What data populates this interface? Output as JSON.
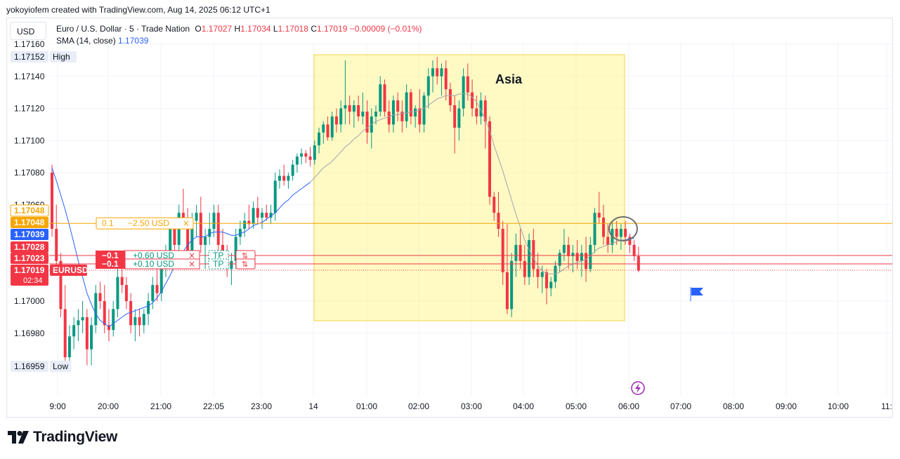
{
  "caption": "yokoyiofem created with TradingView.com, Aug 14, 2025 06:12 UTC+1",
  "currency_button": "USD",
  "legend": {
    "symbol": "Euro / U.S. Dollar · 5 · Trade Nation",
    "o_label": "O",
    "o_value": "1.17027",
    "h_label": "H",
    "h_value": "1.17034",
    "l_label": "L",
    "l_value": "1.17018",
    "c_label": "C",
    "c_value": "1.17019",
    "change": "−0.00009 (−0.01%)",
    "sma_label": "SMA (14, close)",
    "sma_value": "1.17039"
  },
  "brand": "TradingView",
  "colors": {
    "up": "#089981",
    "down": "#f23645",
    "sma": "#2962ff",
    "sma_session": "#a0a4ad",
    "session": "#fff59d",
    "position": "#f7a600",
    "orders": "#f23645",
    "ticker": "#f23645"
  },
  "chart_data": {
    "type": "candlestick",
    "symbol": "EURUSD",
    "interval": "5",
    "ylim": [
      1.1694,
      1.17165
    ],
    "y_ticks": [
      "1.17160",
      "1.17140",
      "1.17120",
      "1.17100",
      "1.17080",
      "1.17060",
      "1.17000",
      "1.16980"
    ],
    "x_ticks": [
      "9:00",
      "20:00",
      "21:00",
      "22:05",
      "23:00",
      "14",
      "01:00",
      "02:00",
      "03:00",
      "04:00",
      "05:00",
      "06:00",
      "07:00",
      "08:00",
      "09:00",
      "10:00",
      "11:"
    ],
    "price_labels": [
      {
        "text": "1.17152",
        "tag": "High",
        "price": 1.17152,
        "style": "neutral"
      },
      {
        "text": "1.17048",
        "tag": "",
        "price": 1.17052,
        "style": "position-outline"
      },
      {
        "text": "1.17048",
        "tag": "",
        "price": 1.17044,
        "style": "position"
      },
      {
        "text": "1.17039",
        "tag": "",
        "price": 1.17039,
        "style": "sma"
      },
      {
        "text": "1.17028",
        "tag": "",
        "price": 1.17031,
        "style": "order"
      },
      {
        "text": "1.17023",
        "tag": "",
        "price": 1.17024,
        "style": "order"
      },
      {
        "text": "1.17019",
        "tag": "EURUSD",
        "countdown": "02:34",
        "price": 1.17017,
        "style": "ticker"
      },
      {
        "text": "1.16959",
        "tag": "Low",
        "price": 1.16959,
        "style": "neutral"
      }
    ],
    "session": {
      "label": "Asia"
    },
    "position_line": {
      "price": 1.17048,
      "qty": "0.1",
      "pnl": "−2.50 USD"
    },
    "orders": [
      {
        "price": 1.17028,
        "qty": "−0.1",
        "pnl": "+0.60 USD",
        "tag": "TP"
      },
      {
        "price": 1.17023,
        "qty": "−0.1",
        "pnl": "+0.10 USD",
        "tag": "TP"
      }
    ],
    "candles": [
      {
        "o": 1.1708,
        "h": 1.17085,
        "l": 1.1704,
        "c": 1.17045
      },
      {
        "o": 1.17045,
        "h": 1.1706,
        "l": 1.1702,
        "c": 1.17025
      },
      {
        "o": 1.17025,
        "h": 1.1703,
        "l": 1.1699,
        "c": 1.16995
      },
      {
        "o": 1.16995,
        "h": 1.1701,
        "l": 1.1696,
        "c": 1.16965
      },
      {
        "o": 1.16965,
        "h": 1.16985,
        "l": 1.16962,
        "c": 1.16978
      },
      {
        "o": 1.16978,
        "h": 1.1699,
        "l": 1.1697,
        "c": 1.16985
      },
      {
        "o": 1.16985,
        "h": 1.16995,
        "l": 1.16975,
        "c": 1.16988
      },
      {
        "o": 1.16988,
        "h": 1.17,
        "l": 1.1698,
        "c": 1.1699
      },
      {
        "o": 1.1699,
        "h": 1.16995,
        "l": 1.1696,
        "c": 1.1697
      },
      {
        "o": 1.1697,
        "h": 1.1699,
        "l": 1.1696,
        "c": 1.16985
      },
      {
        "o": 1.16985,
        "h": 1.1701,
        "l": 1.1698,
        "c": 1.17005
      },
      {
        "o": 1.17005,
        "h": 1.17012,
        "l": 1.16995,
        "c": 1.17
      },
      {
        "o": 1.17,
        "h": 1.1701,
        "l": 1.1698,
        "c": 1.16985
      },
      {
        "o": 1.16985,
        "h": 1.16995,
        "l": 1.16975,
        "c": 1.16982
      },
      {
        "o": 1.16982,
        "h": 1.17,
        "l": 1.16978,
        "c": 1.16995
      },
      {
        "o": 1.16995,
        "h": 1.1702,
        "l": 1.1699,
        "c": 1.17015
      },
      {
        "o": 1.17015,
        "h": 1.1703,
        "l": 1.17005,
        "c": 1.1701
      },
      {
        "o": 1.1701,
        "h": 1.17015,
        "l": 1.16995,
        "c": 1.17
      },
      {
        "o": 1.17,
        "h": 1.17005,
        "l": 1.1698,
        "c": 1.16985
      },
      {
        "o": 1.16985,
        "h": 1.16995,
        "l": 1.16975,
        "c": 1.1699
      },
      {
        "o": 1.1699,
        "h": 1.16995,
        "l": 1.16978,
        "c": 1.16985
      },
      {
        "o": 1.16985,
        "h": 1.16995,
        "l": 1.1698,
        "c": 1.16992
      },
      {
        "o": 1.16992,
        "h": 1.17005,
        "l": 1.16985,
        "c": 1.17
      },
      {
        "o": 1.17,
        "h": 1.17015,
        "l": 1.16995,
        "c": 1.1701
      },
      {
        "o": 1.1701,
        "h": 1.1702,
        "l": 1.17,
        "c": 1.17005
      },
      {
        "o": 1.17005,
        "h": 1.17025,
        "l": 1.17,
        "c": 1.1702
      },
      {
        "o": 1.1702,
        "h": 1.17035,
        "l": 1.17015,
        "c": 1.1703
      },
      {
        "o": 1.1703,
        "h": 1.17048,
        "l": 1.17025,
        "c": 1.17045
      },
      {
        "o": 1.17045,
        "h": 1.17052,
        "l": 1.1703,
        "c": 1.17035
      },
      {
        "o": 1.17035,
        "h": 1.1706,
        "l": 1.1703,
        "c": 1.17055
      },
      {
        "o": 1.17055,
        "h": 1.1707,
        "l": 1.17045,
        "c": 1.1705
      },
      {
        "o": 1.1705,
        "h": 1.17058,
        "l": 1.1702,
        "c": 1.17028
      },
      {
        "o": 1.17028,
        "h": 1.17055,
        "l": 1.17025,
        "c": 1.1705
      },
      {
        "o": 1.1705,
        "h": 1.1706,
        "l": 1.1704,
        "c": 1.17055
      },
      {
        "o": 1.17055,
        "h": 1.17065,
        "l": 1.1703,
        "c": 1.17035
      },
      {
        "o": 1.17035,
        "h": 1.17045,
        "l": 1.1702,
        "c": 1.1704
      },
      {
        "o": 1.1704,
        "h": 1.17055,
        "l": 1.17035,
        "c": 1.17045
      },
      {
        "o": 1.17045,
        "h": 1.1706,
        "l": 1.1704,
        "c": 1.17055
      },
      {
        "o": 1.17055,
        "h": 1.1706,
        "l": 1.1703,
        "c": 1.17035
      },
      {
        "o": 1.17035,
        "h": 1.17045,
        "l": 1.17025,
        "c": 1.17028
      },
      {
        "o": 1.17028,
        "h": 1.17035,
        "l": 1.17015,
        "c": 1.1702
      },
      {
        "o": 1.1702,
        "h": 1.1703,
        "l": 1.1701,
        "c": 1.17025
      },
      {
        "o": 1.17025,
        "h": 1.17045,
        "l": 1.1702,
        "c": 1.1704
      },
      {
        "o": 1.1704,
        "h": 1.1705,
        "l": 1.17035,
        "c": 1.17045
      },
      {
        "o": 1.17045,
        "h": 1.17055,
        "l": 1.1704,
        "c": 1.1705
      },
      {
        "o": 1.1705,
        "h": 1.1706,
        "l": 1.17045,
        "c": 1.17048
      },
      {
        "o": 1.17048,
        "h": 1.17062,
        "l": 1.17045,
        "c": 1.17058
      },
      {
        "o": 1.17058,
        "h": 1.17065,
        "l": 1.17048,
        "c": 1.17052
      },
      {
        "o": 1.17052,
        "h": 1.17058,
        "l": 1.17045,
        "c": 1.17055
      },
      {
        "o": 1.17055,
        "h": 1.1706,
        "l": 1.1705,
        "c": 1.17052
      },
      {
        "o": 1.17052,
        "h": 1.1706,
        "l": 1.17048,
        "c": 1.17055
      },
      {
        "o": 1.17055,
        "h": 1.1708,
        "l": 1.1705,
        "c": 1.17075
      },
      {
        "o": 1.17075,
        "h": 1.17082,
        "l": 1.1707,
        "c": 1.17078
      },
      {
        "o": 1.17078,
        "h": 1.17085,
        "l": 1.17072,
        "c": 1.17075
      },
      {
        "o": 1.17075,
        "h": 1.1708,
        "l": 1.1707,
        "c": 1.17078
      },
      {
        "o": 1.17078,
        "h": 1.17088,
        "l": 1.17075,
        "c": 1.17085
      },
      {
        "o": 1.17085,
        "h": 1.17092,
        "l": 1.1708,
        "c": 1.1709
      },
      {
        "o": 1.1709,
        "h": 1.17095,
        "l": 1.17085,
        "c": 1.17092
      },
      {
        "o": 1.17092,
        "h": 1.17094,
        "l": 1.17086,
        "c": 1.1709
      },
      {
        "o": 1.1709,
        "h": 1.17096,
        "l": 1.17084,
        "c": 1.17088
      },
      {
        "o": 1.17088,
        "h": 1.171,
        "l": 1.17085,
        "c": 1.17097
      },
      {
        "o": 1.17097,
        "h": 1.17108,
        "l": 1.17092,
        "c": 1.17105
      },
      {
        "o": 1.17105,
        "h": 1.17112,
        "l": 1.17098,
        "c": 1.1711
      },
      {
        "o": 1.1711,
        "h": 1.17115,
        "l": 1.171,
        "c": 1.17102
      },
      {
        "o": 1.17102,
        "h": 1.17118,
        "l": 1.171,
        "c": 1.17115
      },
      {
        "o": 1.17115,
        "h": 1.1712,
        "l": 1.17105,
        "c": 1.1711
      },
      {
        "o": 1.1711,
        "h": 1.17125,
        "l": 1.17105,
        "c": 1.1712
      },
      {
        "o": 1.1712,
        "h": 1.1715,
        "l": 1.1711,
        "c": 1.17122
      },
      {
        "o": 1.17122,
        "h": 1.17128,
        "l": 1.1711,
        "c": 1.17118
      },
      {
        "o": 1.17118,
        "h": 1.17125,
        "l": 1.17108,
        "c": 1.17122
      },
      {
        "o": 1.17122,
        "h": 1.17128,
        "l": 1.17112,
        "c": 1.17115
      },
      {
        "o": 1.17115,
        "h": 1.1713,
        "l": 1.1711,
        "c": 1.17118
      },
      {
        "o": 1.17118,
        "h": 1.17125,
        "l": 1.17098,
        "c": 1.17105
      },
      {
        "o": 1.17105,
        "h": 1.1712,
        "l": 1.17095,
        "c": 1.17115
      },
      {
        "o": 1.17115,
        "h": 1.17122,
        "l": 1.1711,
        "c": 1.17118
      },
      {
        "o": 1.17118,
        "h": 1.1714,
        "l": 1.17115,
        "c": 1.17135
      },
      {
        "o": 1.17135,
        "h": 1.17138,
        "l": 1.17115,
        "c": 1.17118
      },
      {
        "o": 1.17118,
        "h": 1.17125,
        "l": 1.17105,
        "c": 1.1711
      },
      {
        "o": 1.1711,
        "h": 1.17128,
        "l": 1.17105,
        "c": 1.17125
      },
      {
        "o": 1.17125,
        "h": 1.1713,
        "l": 1.17112,
        "c": 1.17118
      },
      {
        "o": 1.17118,
        "h": 1.17125,
        "l": 1.17105,
        "c": 1.17112
      },
      {
        "o": 1.17112,
        "h": 1.17135,
        "l": 1.17108,
        "c": 1.1713
      },
      {
        "o": 1.1713,
        "h": 1.17132,
        "l": 1.1711,
        "c": 1.17115
      },
      {
        "o": 1.17115,
        "h": 1.17122,
        "l": 1.17108,
        "c": 1.1712
      },
      {
        "o": 1.1712,
        "h": 1.17132,
        "l": 1.17105,
        "c": 1.1711
      },
      {
        "o": 1.1711,
        "h": 1.1713,
        "l": 1.17105,
        "c": 1.17128
      },
      {
        "o": 1.17128,
        "h": 1.17145,
        "l": 1.1712,
        "c": 1.1714
      },
      {
        "o": 1.1714,
        "h": 1.1715,
        "l": 1.1713,
        "c": 1.17145
      },
      {
        "o": 1.17145,
        "h": 1.17152,
        "l": 1.17135,
        "c": 1.1714
      },
      {
        "o": 1.1714,
        "h": 1.17148,
        "l": 1.17128,
        "c": 1.17145
      },
      {
        "o": 1.17145,
        "h": 1.1715,
        "l": 1.17125,
        "c": 1.17132
      },
      {
        "o": 1.17132,
        "h": 1.17136,
        "l": 1.17118,
        "c": 1.17122
      },
      {
        "o": 1.17122,
        "h": 1.17128,
        "l": 1.17092,
        "c": 1.17108
      },
      {
        "o": 1.17108,
        "h": 1.17125,
        "l": 1.171,
        "c": 1.1712
      },
      {
        "o": 1.1712,
        "h": 1.17145,
        "l": 1.17115,
        "c": 1.1714
      },
      {
        "o": 1.1714,
        "h": 1.17148,
        "l": 1.17125,
        "c": 1.1713
      },
      {
        "o": 1.1713,
        "h": 1.17138,
        "l": 1.17115,
        "c": 1.1712
      },
      {
        "o": 1.1712,
        "h": 1.17128,
        "l": 1.1711,
        "c": 1.17115
      },
      {
        "o": 1.17115,
        "h": 1.1713,
        "l": 1.1711,
        "c": 1.17125
      },
      {
        "o": 1.17125,
        "h": 1.17128,
        "l": 1.17095,
        "c": 1.17112
      },
      {
        "o": 1.17112,
        "h": 1.17115,
        "l": 1.1706,
        "c": 1.17065
      },
      {
        "o": 1.17065,
        "h": 1.17068,
        "l": 1.1705,
        "c": 1.17055
      },
      {
        "o": 1.17055,
        "h": 1.17068,
        "l": 1.1704,
        "c": 1.17045
      },
      {
        "o": 1.17045,
        "h": 1.1705,
        "l": 1.1701,
        "c": 1.17018
      },
      {
        "o": 1.17018,
        "h": 1.17048,
        "l": 1.16992,
        "c": 1.16995
      },
      {
        "o": 1.16995,
        "h": 1.1703,
        "l": 1.1699,
        "c": 1.17025
      },
      {
        "o": 1.17025,
        "h": 1.17042,
        "l": 1.17015,
        "c": 1.17035
      },
      {
        "o": 1.17035,
        "h": 1.17045,
        "l": 1.1702,
        "c": 1.17025
      },
      {
        "o": 1.17025,
        "h": 1.17035,
        "l": 1.1701,
        "c": 1.17015
      },
      {
        "o": 1.17015,
        "h": 1.17042,
        "l": 1.1701,
        "c": 1.17038
      },
      {
        "o": 1.17038,
        "h": 1.17045,
        "l": 1.17015,
        "c": 1.1702
      },
      {
        "o": 1.1702,
        "h": 1.1703,
        "l": 1.17008,
        "c": 1.17015
      },
      {
        "o": 1.17015,
        "h": 1.17022,
        "l": 1.17005,
        "c": 1.17018
      },
      {
        "o": 1.17018,
        "h": 1.1702,
        "l": 1.16998,
        "c": 1.17008
      },
      {
        "o": 1.17008,
        "h": 1.17015,
        "l": 1.17003,
        "c": 1.17012
      },
      {
        "o": 1.17012,
        "h": 1.17025,
        "l": 1.17008,
        "c": 1.17022
      },
      {
        "o": 1.17022,
        "h": 1.17032,
        "l": 1.17018,
        "c": 1.1703
      },
      {
        "o": 1.1703,
        "h": 1.17045,
        "l": 1.17025,
        "c": 1.17035
      },
      {
        "o": 1.17035,
        "h": 1.1704,
        "l": 1.1702,
        "c": 1.17028
      },
      {
        "o": 1.17028,
        "h": 1.17035,
        "l": 1.17018,
        "c": 1.1703
      },
      {
        "o": 1.1703,
        "h": 1.17038,
        "l": 1.1702,
        "c": 1.17025
      },
      {
        "o": 1.17025,
        "h": 1.17035,
        "l": 1.17015,
        "c": 1.1703
      },
      {
        "o": 1.1703,
        "h": 1.1704,
        "l": 1.17012,
        "c": 1.1702
      },
      {
        "o": 1.1702,
        "h": 1.1704,
        "l": 1.17018,
        "c": 1.17035
      },
      {
        "o": 1.17035,
        "h": 1.17058,
        "l": 1.1703,
        "c": 1.17055
      },
      {
        "o": 1.17055,
        "h": 1.17068,
        "l": 1.17048,
        "c": 1.17052
      },
      {
        "o": 1.17052,
        "h": 1.1706,
        "l": 1.17035,
        "c": 1.1704
      },
      {
        "o": 1.1704,
        "h": 1.17048,
        "l": 1.1703,
        "c": 1.17035
      },
      {
        "o": 1.17035,
        "h": 1.1705,
        "l": 1.1703,
        "c": 1.17045
      },
      {
        "o": 1.17045,
        "h": 1.1705,
        "l": 1.17035,
        "c": 1.1704
      },
      {
        "o": 1.1704,
        "h": 1.17048,
        "l": 1.17032,
        "c": 1.17045
      },
      {
        "o": 1.17045,
        "h": 1.1705,
        "l": 1.17035,
        "c": 1.1704
      },
      {
        "o": 1.1704,
        "h": 1.17042,
        "l": 1.1703,
        "c": 1.17035
      },
      {
        "o": 1.17035,
        "h": 1.17038,
        "l": 1.17025,
        "c": 1.17028
      },
      {
        "o": 1.17028,
        "h": 1.17034,
        "l": 1.17018,
        "c": 1.17019
      }
    ],
    "sma": [
      1.17083,
      1.17075,
      1.17066,
      1.17057,
      1.17047,
      1.17036,
      1.17025,
      1.17015,
      1.17005,
      1.16998,
      1.16992,
      1.16988,
      1.16986,
      1.16984,
      1.16986,
      1.16988,
      1.1699,
      1.16992,
      1.16993,
      1.16994,
      1.16995,
      1.16996,
      1.16997,
      1.16999,
      1.17002,
      1.17006,
      1.17011,
      1.17016,
      1.17022,
      1.17027,
      1.17031,
      1.17035,
      1.17038,
      1.1704,
      1.1704,
      1.1704,
      1.17042,
      1.17043,
      1.17043,
      1.17043,
      1.17042,
      1.17041,
      1.17041,
      1.17042,
      1.17043,
      1.17045,
      1.17047,
      1.17048,
      1.17049,
      1.17051,
      1.17053,
      1.17055,
      1.17058,
      1.17061,
      1.17063,
      1.17066,
      1.17068,
      1.1707,
      1.17072,
      1.17074,
      1.17077,
      1.1708,
      1.17083,
      1.17085,
      1.17087,
      1.1709,
      1.17093,
      1.17096,
      1.17098,
      1.17101,
      1.17103,
      1.17106,
      1.17108,
      1.1711,
      1.17112,
      1.17113,
      1.17114,
      1.17115,
      1.17116,
      1.17116,
      1.17117,
      1.17117,
      1.17118,
      1.17118,
      1.17119,
      1.1712,
      1.17122,
      1.17124,
      1.17126,
      1.17127,
      1.17128,
      1.17128,
      1.17128,
      1.17129,
      1.17129,
      1.17129,
      1.17127,
      1.17124,
      1.17119,
      1.17113,
      1.17106,
      1.17097,
      1.17089,
      1.17081,
      1.17072,
      1.17063,
      1.17054,
      1.17046,
      1.17038,
      1.17032,
      1.17027,
      1.17022,
      1.17019,
      1.17017,
      1.17017,
      1.17017,
      1.17018,
      1.1702,
      1.17022,
      1.17023,
      1.17024,
      1.17025,
      1.17026,
      1.17028,
      1.17031,
      1.17033,
      1.17034,
      1.17035,
      1.17036,
      1.17037,
      1.17038,
      1.17038,
      1.17039,
      1.17039
    ]
  }
}
